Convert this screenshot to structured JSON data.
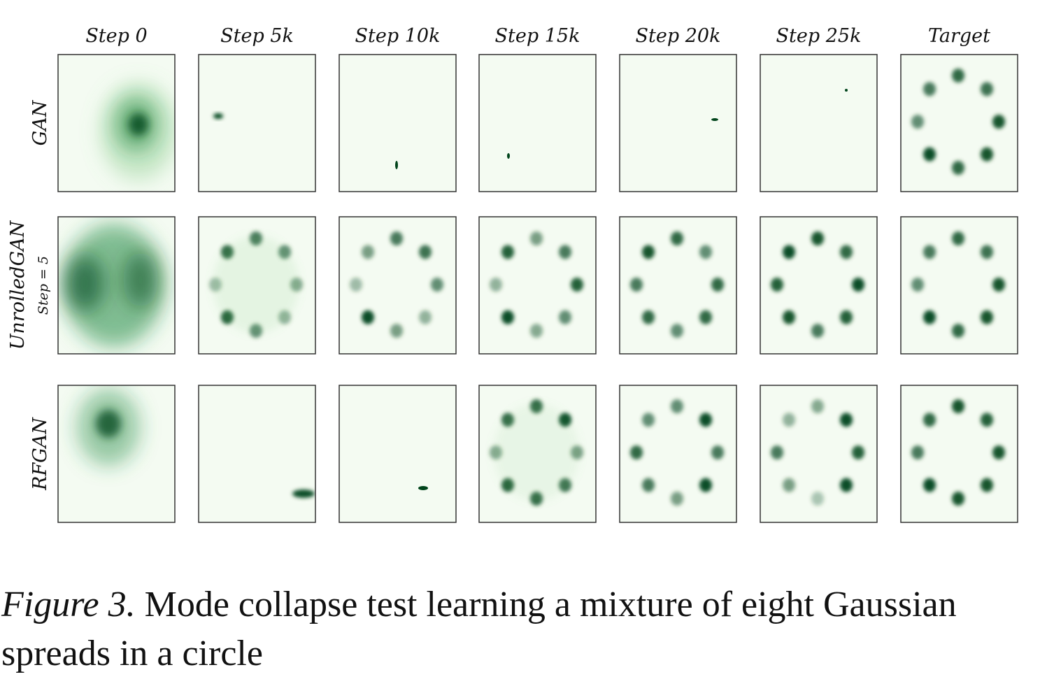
{
  "figure": {
    "columns": [
      "Step 0",
      "Step 5k",
      "Step 10k",
      "Step 15k",
      "Step 20k",
      "Step 25k",
      "Target"
    ],
    "rows": [
      {
        "label": "GAN"
      },
      {
        "label": "UnrolledGAN",
        "sublabel": "Step = 5"
      },
      {
        "label": "RFGAN"
      }
    ],
    "caption": {
      "label": "Figure 3.",
      "text": "Mode collapse test learning a mixture of eight Gaussian spreads in a circle"
    }
  }
}
